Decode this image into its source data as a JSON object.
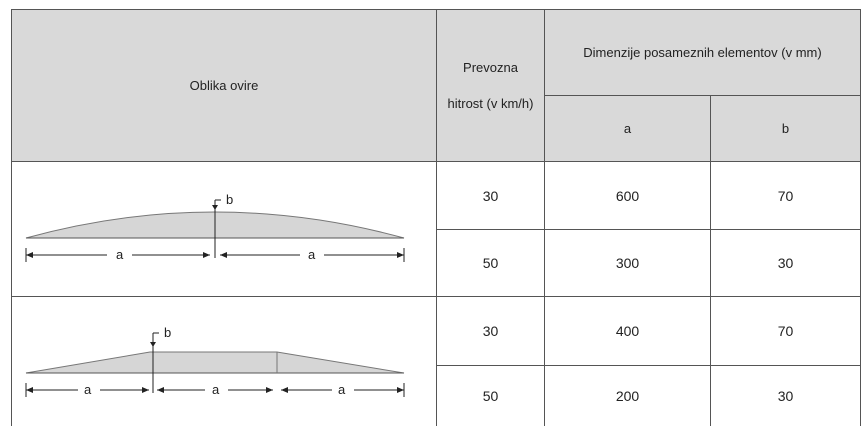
{
  "table": {
    "header": {
      "shape": "Oblika ovire",
      "speed_line1": "Prevozna",
      "speed_line2": "hitrost (v km/h)",
      "dimensions": "Dimenzije posameznih elementov (v mm)",
      "col_a": "a",
      "col_b": "b"
    },
    "groups": [
      {
        "shape_type": "curved-hump",
        "shape_labels": {
          "height": "b",
          "left_len": "a",
          "right_len": "a"
        },
        "rows": [
          {
            "speed": "30",
            "a": "600",
            "b": "70"
          },
          {
            "speed": "50",
            "a": "300",
            "b": "30"
          }
        ]
      },
      {
        "shape_type": "trapezoid-hump",
        "shape_labels": {
          "height": "b",
          "len1": "a",
          "len2": "a",
          "len3": "a"
        },
        "rows": [
          {
            "speed": "30",
            "a": "400",
            "b": "70"
          },
          {
            "speed": "50",
            "a": "200",
            "b": "30"
          }
        ]
      }
    ]
  },
  "colors": {
    "header_bg": "#d9d9d9",
    "shape_fill": "#d6d6d6",
    "border": "#555555"
  }
}
